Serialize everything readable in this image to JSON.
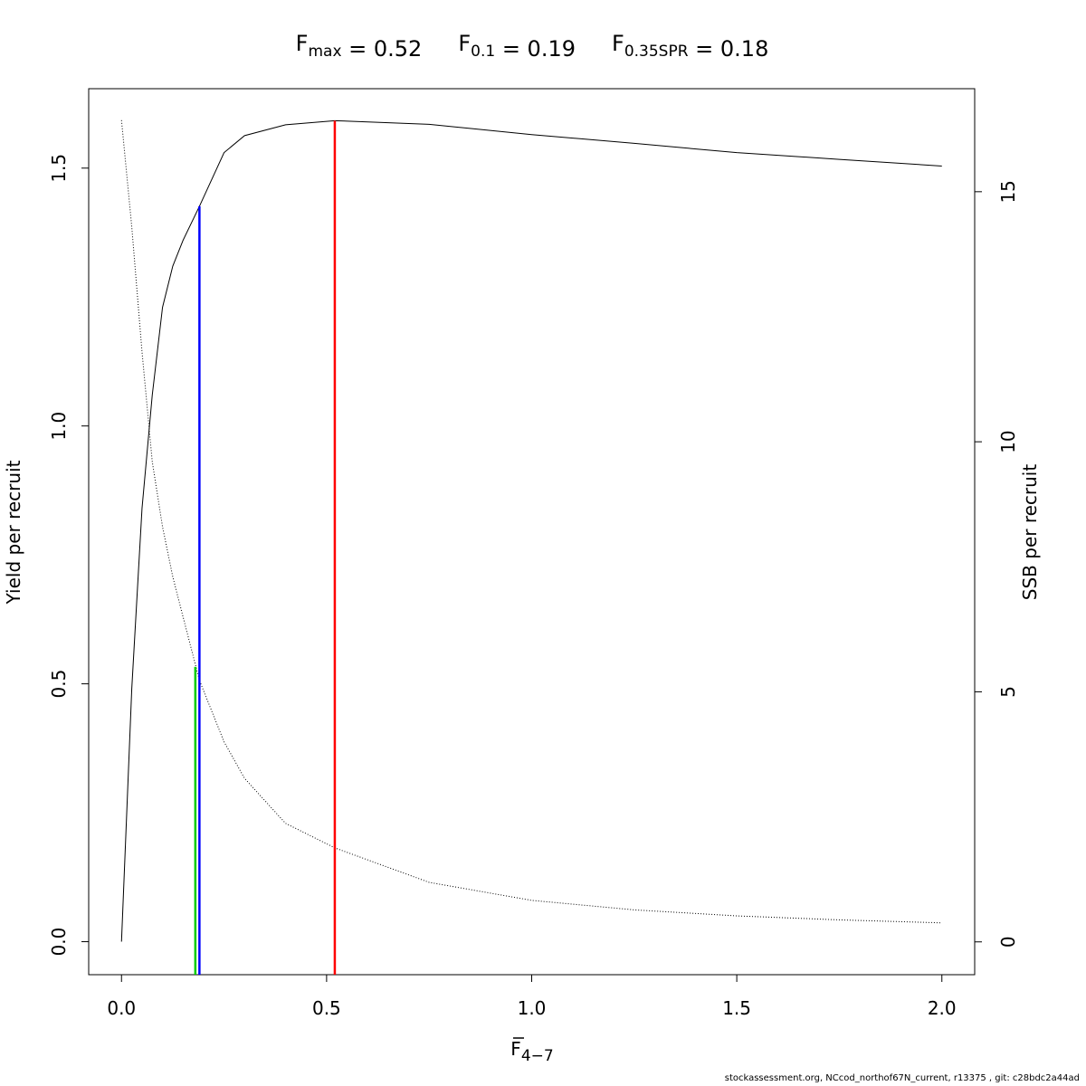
{
  "chart_data": {
    "type": "line",
    "title_parts": [
      {
        "symbol": "F",
        "subscript": "max",
        "text": " = 0.52"
      },
      {
        "symbol": "F",
        "subscript": "0.1",
        "text": " = 0.19"
      },
      {
        "symbol": "F",
        "subscript": "0.35SPR",
        "text": " = 0.18"
      }
    ],
    "xlabel": {
      "symbol": "F",
      "subscript": "4−7"
    },
    "ylabel": "Yield per recruit",
    "y2label": "SSB per recruit",
    "footer": "stockassessment.org, NCcod_northof67N_current, r13375 , git: c28bdc2a44ad",
    "x": [
      0,
      0.025,
      0.05,
      0.075,
      0.1,
      0.125,
      0.15,
      0.19,
      0.25,
      0.3,
      0.4,
      0.52,
      0.75,
      1.0,
      1.25,
      1.5,
      1.75,
      2.0
    ],
    "series": [
      {
        "name": "Yield per recruit",
        "color": "#000000",
        "style": "solid",
        "values": [
          0,
          0.49,
          0.84,
          1.06,
          1.23,
          1.31,
          1.36,
          1.426,
          1.53,
          1.563,
          1.584,
          1.592,
          1.585,
          1.565,
          1.548,
          1.53,
          1.517,
          1.504
        ]
      },
      {
        "name": "SSB per recruit",
        "color": "#000000",
        "style": "dotted",
        "axis": "y2",
        "values": [
          16.43,
          14.3,
          11.8,
          9.6,
          8.3,
          7.3,
          6.5,
          5.23,
          4.0,
          3.27,
          2.37,
          1.88,
          1.19,
          0.83,
          0.64,
          0.52,
          0.44,
          0.38
        ]
      }
    ],
    "reference_lines": [
      {
        "x": 0.52,
        "top": 1.592,
        "axis": "y",
        "color": "#ff0000"
      },
      {
        "x": 0.19,
        "top": 1.426,
        "axis": "y",
        "color": "#0000ff"
      },
      {
        "x": 0.18,
        "top": 5.5,
        "axis": "y2",
        "color": "#00cd00"
      }
    ],
    "xlim": [
      -0.08,
      2.08
    ],
    "ylim": [
      -0.064,
      1.654
    ],
    "y2lim": [
      -0.656,
      17.06
    ],
    "xticks": [
      {
        "value": 0,
        "label": "0.0"
      },
      {
        "value": 0.5,
        "label": "0.5"
      },
      {
        "value": 1,
        "label": "1.0"
      },
      {
        "value": 1.5,
        "label": "1.5"
      },
      {
        "value": 2,
        "label": "2.0"
      }
    ],
    "yticks": [
      {
        "value": 0,
        "label": "0.0"
      },
      {
        "value": 0.5,
        "label": "0.5"
      },
      {
        "value": 1,
        "label": "1.0"
      },
      {
        "value": 1.5,
        "label": "1.5"
      }
    ],
    "y2ticks": [
      0,
      5,
      10,
      15
    ]
  }
}
